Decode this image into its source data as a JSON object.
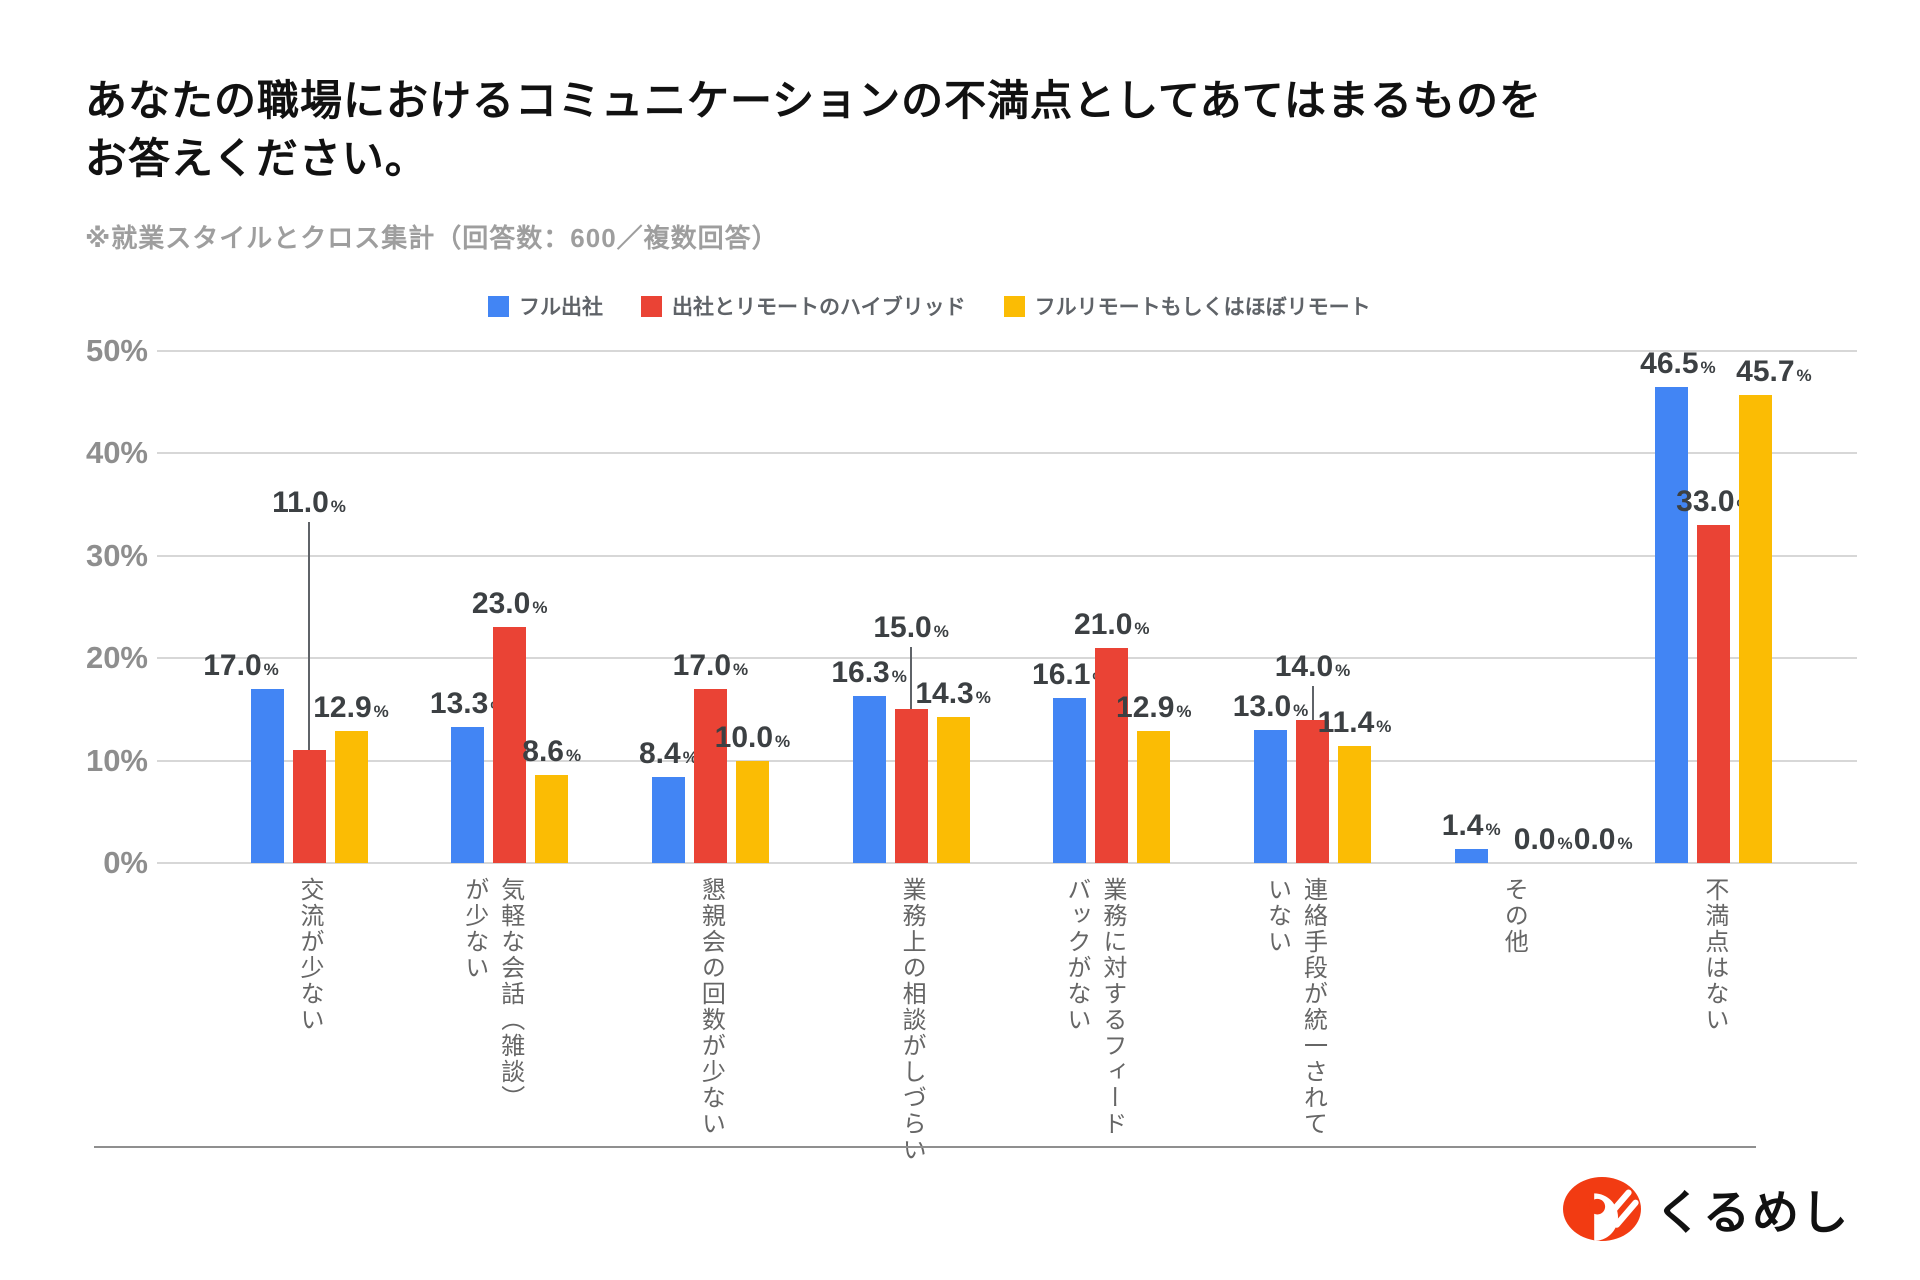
{
  "header": {
    "title_line1": "あなたの職場におけるコミュニケーションの不満点としてあてはまるものを",
    "title_line2": "お答えください。",
    "subtitle": "※就業スタイルとクロス集計（回答数：600／複数回答）"
  },
  "footer": {
    "logo_text": "くるめし",
    "logo_mark_icon": "kurumeshi-mark",
    "logo_color": "#F23B12"
  },
  "chart_data": {
    "type": "bar",
    "title": "あなたの職場におけるコミュニケーションの不満点としてあてはまるものをお答えください。",
    "subtitle": "※就業スタイルとクロス集計（回答数：600／複数回答）",
    "unit": "%",
    "ylim": [
      0,
      50
    ],
    "yticks": [
      0,
      10,
      20,
      30,
      40,
      50
    ],
    "ytick_suffix": "%",
    "grid": true,
    "legend_position": "top",
    "categories": [
      "交流が少ない",
      "気軽な会話（雑談）が少ない",
      "懇親会の回数が少ない",
      "業務上の相談がしづらい",
      "業務に対するフィードバックがない",
      "連絡手段が統一されていない",
      "その他",
      "不満点はない"
    ],
    "category_lines": [
      [
        "交流が少ない"
      ],
      [
        "気軽な会話（雑談）",
        "が少ない"
      ],
      [
        "懇親会の回数が少ない"
      ],
      [
        "業務上の相談がしづらい"
      ],
      [
        "業務に対するフィード",
        "バックがない"
      ],
      [
        "連絡手段が統一されて",
        "いない"
      ],
      [
        "その他"
      ],
      [
        "不満点はない"
      ]
    ],
    "series": [
      {
        "name": "フル出社",
        "color": "#4285F4",
        "values": [
          17.0,
          13.3,
          8.4,
          16.3,
          16.1,
          13.0,
          1.4,
          46.5
        ]
      },
      {
        "name": "出社とリモートのハイブリッド",
        "color": "#EA4335",
        "values": [
          11.0,
          23.0,
          17.0,
          15.0,
          21.0,
          14.0,
          0.0,
          33.0
        ]
      },
      {
        "name": "フルリモートもしくはほぼリモート",
        "color": "#FBBC04",
        "values": [
          12.9,
          8.6,
          10.0,
          14.3,
          12.9,
          11.4,
          0.0,
          45.7
        ]
      }
    ],
    "annotations": {
      "label_raise": [
        [
          0,
          0,
          0,
          0,
          0,
          0,
          0,
          0
        ],
        [
          224,
          0,
          0,
          58,
          0,
          30,
          0,
          0
        ],
        [
          0,
          0,
          0,
          0,
          0,
          0,
          0,
          0
        ]
      ],
      "label_dx": [
        [
          -26,
          0,
          0,
          0,
          0,
          0,
          0,
          6
        ],
        [
          0,
          0,
          0,
          0,
          0,
          0,
          30,
          0
        ],
        [
          0,
          0,
          0,
          0,
          0,
          0,
          48,
          18
        ]
      ]
    },
    "gridline_color": "#d7d7d7",
    "annotation_color": "#3c4043"
  }
}
